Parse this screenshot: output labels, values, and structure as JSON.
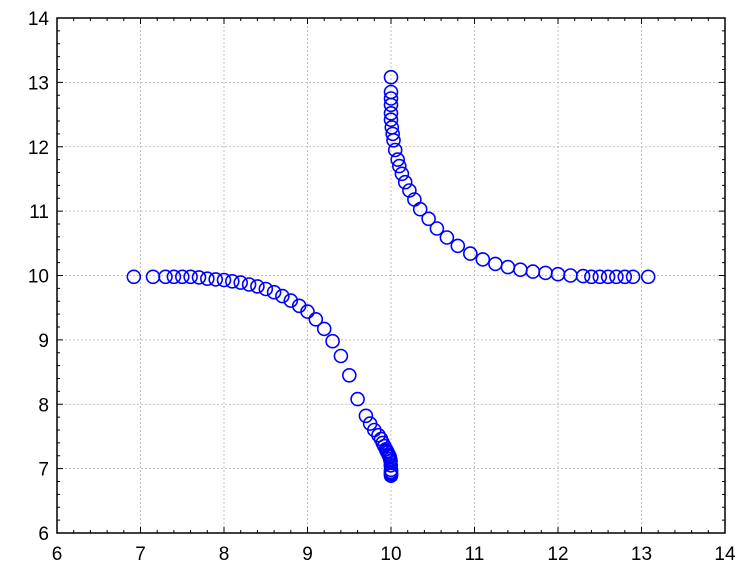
{
  "chart_data": {
    "type": "scatter",
    "title": "",
    "xlabel": "",
    "ylabel": "",
    "xlim": [
      6,
      14
    ],
    "ylim": [
      6,
      14
    ],
    "x_ticks": [
      "6",
      "7",
      "8",
      "9",
      "10",
      "11",
      "12",
      "13",
      "14"
    ],
    "y_ticks": [
      "6",
      "7",
      "8",
      "9",
      "10",
      "11",
      "12",
      "13",
      "14"
    ],
    "grid": true,
    "marker": "open-circle",
    "colors": {
      "marker": "#0000ff",
      "grid": "#b4b4b4",
      "axis": "#000000"
    },
    "series": [
      {
        "x": [
          6.92,
          7.15,
          7.3,
          7.4,
          7.5,
          7.6,
          7.7,
          7.8,
          7.9,
          8.0,
          8.1,
          8.2,
          8.3,
          8.4,
          8.5,
          8.6,
          8.7,
          8.8,
          8.9,
          9.0,
          9.1,
          9.2,
          9.3,
          9.4,
          9.5,
          9.6,
          9.7,
          9.75,
          9.8,
          9.85,
          9.88,
          9.9,
          9.92,
          9.94,
          9.95,
          9.96,
          9.97,
          9.98,
          9.985,
          9.99,
          9.995,
          9.998,
          10.0,
          10.0,
          10.0,
          10.0,
          10.0
        ],
        "y": [
          9.98,
          9.98,
          9.98,
          9.98,
          9.98,
          9.98,
          9.97,
          9.95,
          9.94,
          9.93,
          9.91,
          9.89,
          9.86,
          9.83,
          9.79,
          9.74,
          9.68,
          9.61,
          9.53,
          9.44,
          9.32,
          9.17,
          8.98,
          8.75,
          8.45,
          8.08,
          7.82,
          7.7,
          7.6,
          7.52,
          7.46,
          7.4,
          7.35,
          7.3,
          7.27,
          7.25,
          7.22,
          7.2,
          7.18,
          7.15,
          7.12,
          7.05,
          6.98,
          6.95,
          6.93,
          6.91,
          6.89
        ]
      },
      {
        "x": [
          10.0,
          10.0,
          10.0,
          10.0,
          10.0,
          10.0,
          10.01,
          10.02,
          10.03,
          10.05,
          10.08,
          10.1,
          10.13,
          10.17,
          10.22,
          10.28,
          10.35,
          10.45,
          10.55,
          10.67,
          10.8,
          10.95,
          11.1,
          11.25,
          11.4,
          11.55,
          11.7,
          11.85,
          12.0,
          12.15,
          12.3,
          12.4,
          12.5,
          12.6,
          12.7,
          12.8,
          12.9,
          13.08
        ],
        "y": [
          13.08,
          12.85,
          12.75,
          12.65,
          12.52,
          12.42,
          12.3,
          12.2,
          12.1,
          11.95,
          11.8,
          11.7,
          11.58,
          11.45,
          11.32,
          11.18,
          11.03,
          10.88,
          10.73,
          10.59,
          10.46,
          10.34,
          10.25,
          10.18,
          10.13,
          10.09,
          10.06,
          10.04,
          10.02,
          10.0,
          9.99,
          9.98,
          9.98,
          9.98,
          9.98,
          9.98,
          9.98,
          9.98
        ]
      }
    ]
  }
}
